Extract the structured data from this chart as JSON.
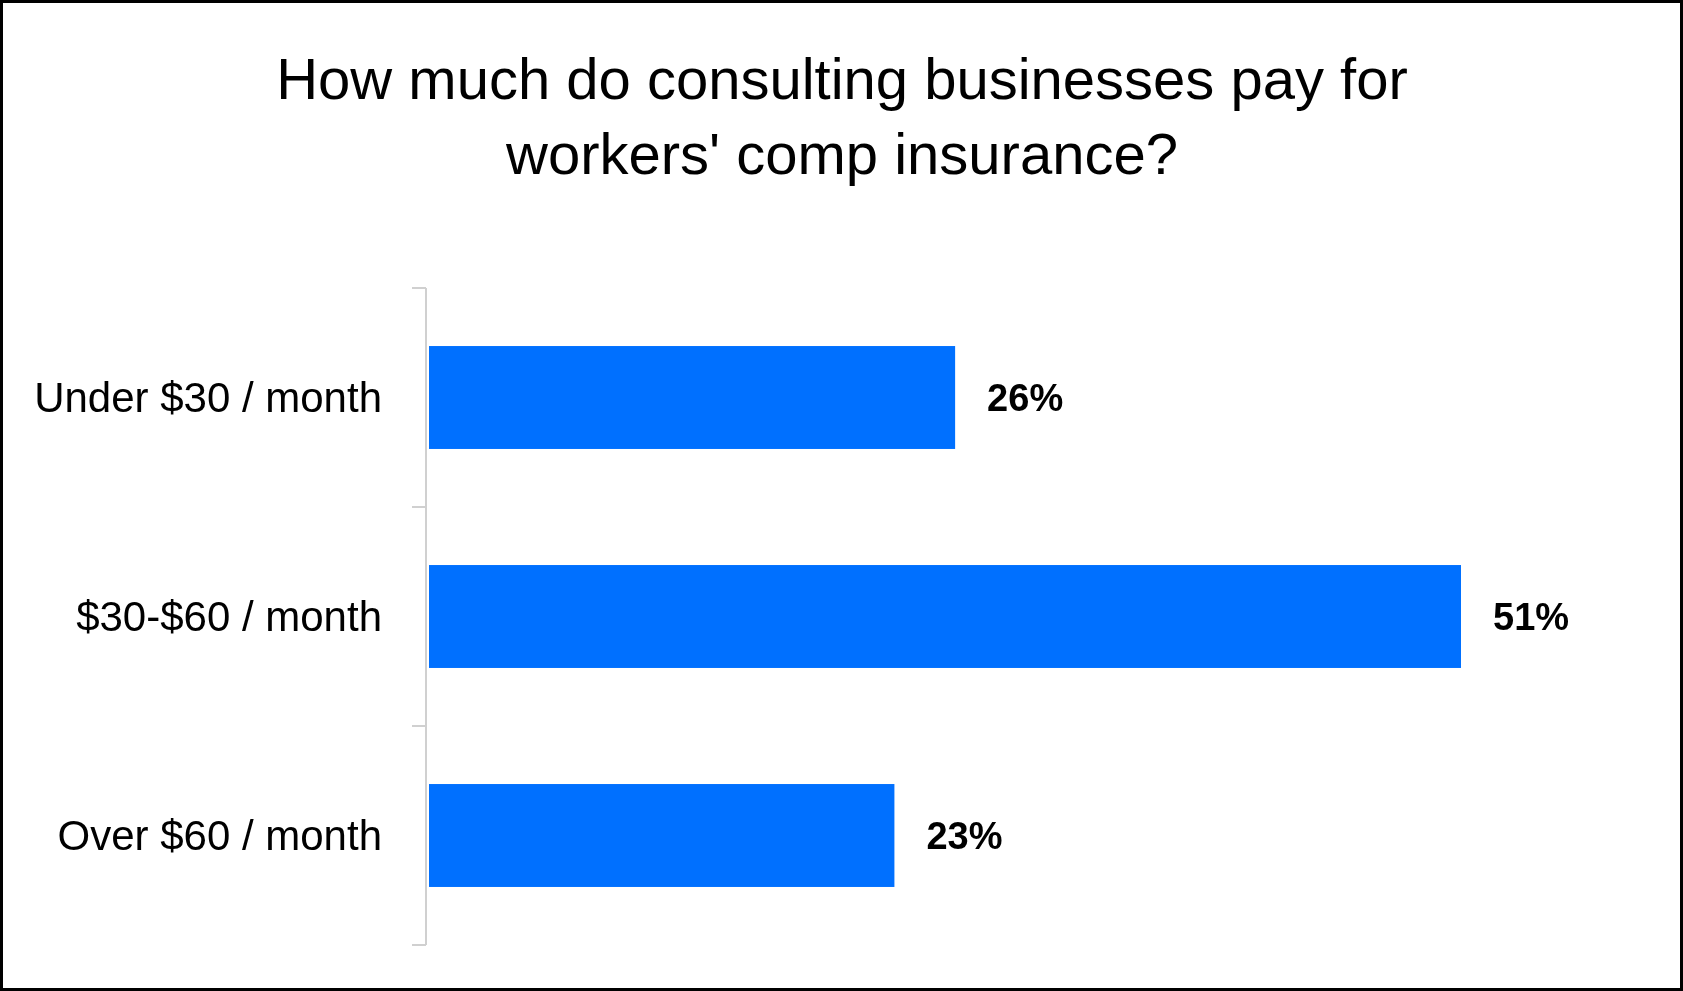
{
  "chart_data": {
    "type": "bar",
    "orientation": "horizontal",
    "title": "How much do consulting businesses pay for workers' comp insurance?",
    "categories": [
      "Under $30 / month",
      "$30-$60 / month",
      "Over $60 / month"
    ],
    "values": [
      26,
      51,
      23
    ],
    "color": "#0070ff",
    "value_labels": [
      "26%",
      "51%",
      "23%"
    ]
  }
}
